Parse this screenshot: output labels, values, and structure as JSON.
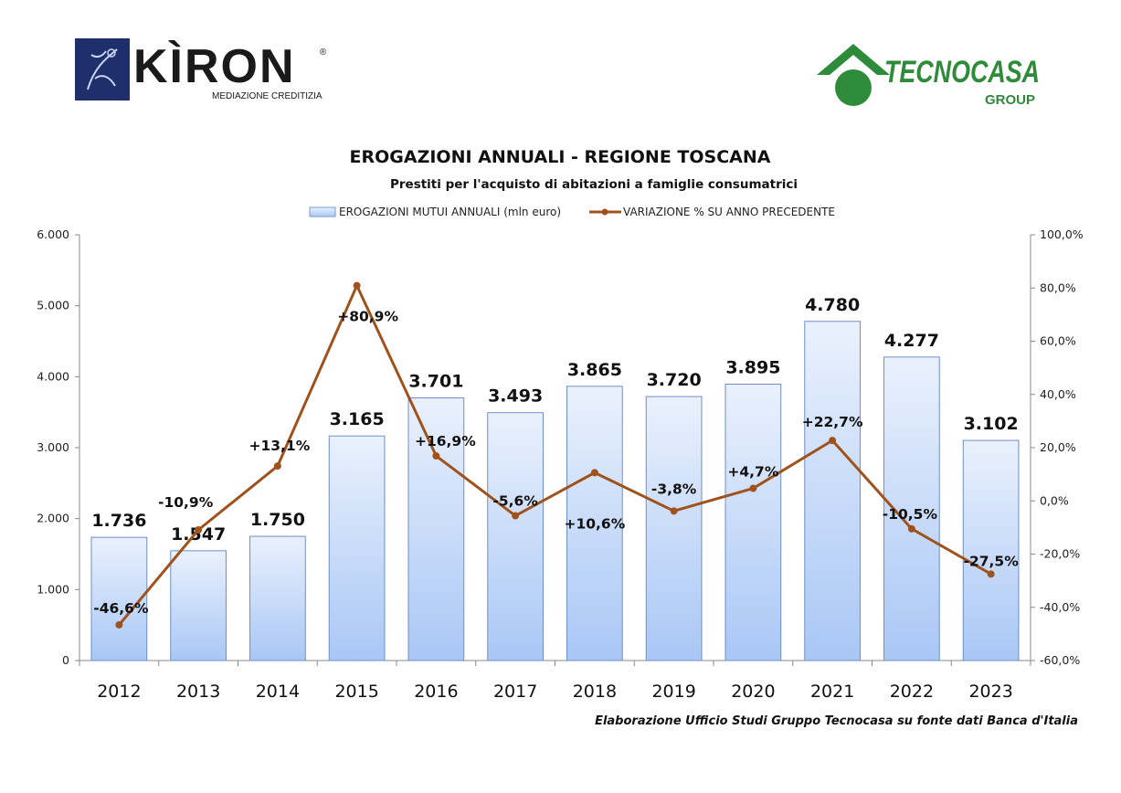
{
  "logos": {
    "kiron": {
      "name": "KÌRON",
      "tagline": "MEDIAZIONE CREDITIZIA",
      "registered": "®",
      "color": "#1f2f6b"
    },
    "tecnocasa": {
      "name": "TECNOCASA",
      "group": "GROUP",
      "color": "#2e8b3a"
    }
  },
  "chart_data": {
    "type": "bar",
    "title": "EROGAZIONI ANNUALI - REGIONE TOSCANA",
    "subtitle": "Prestiti per l'acquisto di abitazioni a famiglie consumatrici",
    "categories": [
      "2012",
      "2013",
      "2014",
      "2015",
      "2016",
      "2017",
      "2018",
      "2019",
      "2020",
      "2021",
      "2022",
      "2023"
    ],
    "series": [
      {
        "name": "EROGAZIONI MUTUI ANNUALI (mln euro)",
        "type": "bar",
        "axis": "left",
        "values": [
          1736,
          1547,
          1750,
          3165,
          3701,
          3493,
          3865,
          3720,
          3895,
          4780,
          4277,
          3102
        ],
        "labels": [
          "1.736",
          "1.547",
          "1.750",
          "3.165",
          "3.701",
          "3.493",
          "3.865",
          "3.720",
          "3.895",
          "4.780",
          "4.277",
          "3.102"
        ],
        "color": "#a9c7f5"
      },
      {
        "name": "VARIAZIONE % SU ANNO PRECEDENTE",
        "type": "line",
        "axis": "right",
        "values": [
          -46.6,
          -10.9,
          13.1,
          80.9,
          16.9,
          -5.6,
          10.6,
          -3.8,
          4.7,
          22.7,
          -10.5,
          -27.5
        ],
        "labels": [
          "-46,6%",
          "-10,9%",
          "+13,1%",
          "+80,9%",
          "+16,9%",
          "-5,6%",
          "+10,6%",
          "-3,8%",
          "+4,7%",
          "+22,7%",
          "-10,5%",
          "-27,5%"
        ],
        "color": "#a0521c"
      }
    ],
    "y_left": {
      "range": [
        0,
        6000
      ],
      "ticks": [
        "0",
        "1.000",
        "2.000",
        "3.000",
        "4.000",
        "5.000",
        "6.000"
      ]
    },
    "y_right": {
      "range": [
        -60,
        100
      ],
      "ticks": [
        "-60,0%",
        "-40,0%",
        "-20,0%",
        "0,0%",
        "20,0%",
        "40,0%",
        "60,0%",
        "80,0%",
        "100,0%"
      ]
    },
    "grid": false,
    "legend": "top",
    "source": "Elaborazione Ufficio Studi Gruppo Tecnocasa su fonte dati Banca d'Italia"
  }
}
